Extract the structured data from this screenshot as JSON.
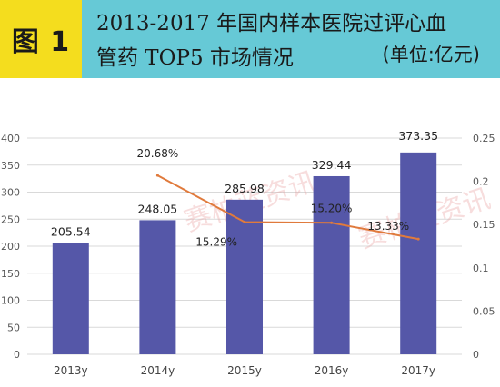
{
  "header": {
    "badge": "图 1",
    "title_line1": "2013-2017 年国内样本医院过评心血",
    "title_line2": "管药 TOP5 市场情况",
    "unit": "(单位:亿元)"
  },
  "watermark": "赛柏蓝资讯",
  "colors": {
    "header_bg": "#66c9d6",
    "badge_bg": "#f4dd1e",
    "bar": "#5557a8",
    "line": "#e07a3c"
  },
  "chart_data": {
    "type": "bar",
    "title": "",
    "xlabel": "",
    "ylabel": "",
    "categories": [
      "2013y",
      "2014y",
      "2015y",
      "2016y",
      "2017y"
    ],
    "series": [
      {
        "values": [
          205.54,
          248.05,
          285.98,
          329.44,
          373.35
        ]
      },
      {
        "type": "line",
        "axis": "right",
        "values": [
          null,
          0.2068,
          0.1529,
          0.152,
          0.1333
        ]
      }
    ],
    "data_labels": [
      "205.54",
      "248.05",
      "285.98",
      "329.44",
      "373.35"
    ],
    "line_labels": [
      "",
      "20.68%",
      "15.29%",
      "15.20%",
      "13.33%"
    ],
    "ylim": [
      0,
      400
    ],
    "y2lim": [
      0,
      0.25
    ],
    "yticks": [
      "0",
      "50",
      "100",
      "150",
      "200",
      "250",
      "300",
      "350",
      "400"
    ],
    "y2ticks": [
      "0",
      "0.05",
      "0.1",
      "0.15",
      "0.2",
      "0.25"
    ],
    "grid": true
  }
}
